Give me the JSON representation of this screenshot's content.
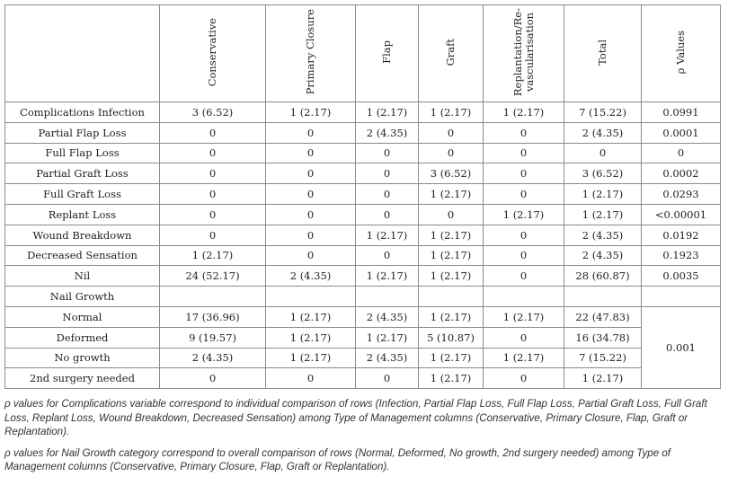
{
  "table": {
    "headers": [
      "",
      "Conservative",
      "Primary Closure",
      "Flap",
      "Graft",
      "Replantation/Re-\nvascularisation",
      "Total",
      "ρ Values"
    ],
    "rows": [
      {
        "label": "Complications Infection",
        "cells": [
          "3 (6.52)",
          "1 (2.17)",
          "1 (2.17)",
          "1 (2.17)",
          "1 (2.17)",
          "7 (15.22)",
          "0.0991"
        ]
      },
      {
        "label": "Partial Flap Loss",
        "cells": [
          "0",
          "0",
          "2 (4.35)",
          "0",
          "0",
          "2 (4.35)",
          "0.0001"
        ]
      },
      {
        "label": "Full Flap Loss",
        "cells": [
          "0",
          "0",
          "0",
          "0",
          "0",
          "0",
          "0"
        ]
      },
      {
        "label": "Partial Graft Loss",
        "cells": [
          "0",
          "0",
          "0",
          "3 (6.52)",
          "0",
          "3 (6.52)",
          "0.0002"
        ]
      },
      {
        "label": "Full Graft Loss",
        "cells": [
          "0",
          "0",
          "0",
          "1 (2.17)",
          "0",
          "1 (2.17)",
          "0.0293"
        ]
      },
      {
        "label": "Replant Loss",
        "cells": [
          "0",
          "0",
          "0",
          "0",
          "1 (2.17)",
          "1 (2.17)",
          "<0.00001"
        ]
      },
      {
        "label": "Wound Breakdown",
        "cells": [
          "0",
          "0",
          "1 (2.17)",
          "1 (2.17)",
          "0",
          "2 (4.35)",
          "0.0192"
        ]
      },
      {
        "label": "Decreased Sensation",
        "cells": [
          "1 (2.17)",
          "0",
          "0",
          "1 (2.17)",
          "0",
          "2 (4.35)",
          "0.1923"
        ]
      },
      {
        "label": "Nil",
        "cells": [
          "24 (52.17)",
          "2 (4.35)",
          "1 (2.17)",
          "1 (2.17)",
          "0",
          "28 (60.87)",
          "0.0035"
        ]
      }
    ],
    "nail_growth_label": "Nail Growth",
    "nail_rows": [
      {
        "label": "Normal",
        "cells": [
          "17 (36.96)",
          "1 (2.17)",
          "2 (4.35)",
          "1 (2.17)",
          "1 (2.17)",
          "22 (47.83)"
        ]
      },
      {
        "label": "Deformed",
        "cells": [
          "9 (19.57)",
          "1 (2.17)",
          "1 (2.17)",
          "5 (10.87)",
          "0",
          "16 (34.78)"
        ]
      },
      {
        "label": "No growth",
        "cells": [
          "2 (4.35)",
          "1 (2.17)",
          "2 (4.35)",
          "1 (2.17)",
          "1 (2.17)",
          "7 (15.22)"
        ]
      },
      {
        "label": "2nd surgery needed",
        "cells": [
          "0",
          "0",
          "0",
          "1 (2.17)",
          "0",
          "1 (2.17)"
        ]
      }
    ],
    "nail_p_value": "0.001"
  },
  "notes": [
    "ρ values for Complications variable correspond to individual comparison of rows (Infection, Partial Flap Loss, Full Flap Loss, Partial Graft Loss, Full Graft Loss, Replant Loss, Wound Breakdown, Decreased Sensation) among Type of Management columns (Conservative, Primary Closure, Flap, Graft or Replantation).",
    "ρ values for Nail Growth category correspond to overall comparison of rows (Normal, Deformed, No growth, 2nd surgery needed) among Type of Management columns (Conservative, Primary Closure, Flap, Graft or Replantation)."
  ]
}
